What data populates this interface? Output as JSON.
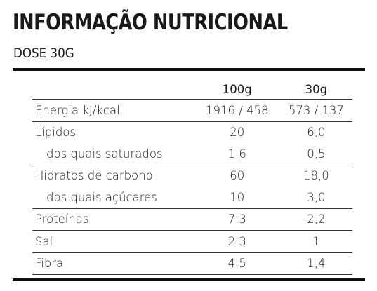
{
  "header": {
    "title": "INFORMAÇÃO NUTRICIONAL",
    "subtitle": "DOSE 30G"
  },
  "table": {
    "columns": [
      "",
      "100g",
      "30g"
    ],
    "rows": [
      {
        "label": "Energia kJ/kcal",
        "per100": "1916 / 458",
        "per30": "573 / 137",
        "sub": false
      },
      {
        "label": "Lípidos",
        "per100": "20",
        "per30": "6,0",
        "sub": false
      },
      {
        "label": "dos quais saturados",
        "per100": "1,6",
        "per30": "0,5",
        "sub": true
      },
      {
        "label": "Hidratos de carbono",
        "per100": "60",
        "per30": "18,0",
        "sub": false
      },
      {
        "label": "dos quais açúcares",
        "per100": "10",
        "per30": "3,0",
        "sub": true
      },
      {
        "label": "Proteínas",
        "per100": "7,3",
        "per30": "2,2",
        "sub": false
      },
      {
        "label": "Sal",
        "per100": "2,3",
        "per30": "1",
        "sub": false
      },
      {
        "label": "Fibra",
        "per100": "4,5",
        "per30": "1,4",
        "sub": false
      }
    ]
  }
}
